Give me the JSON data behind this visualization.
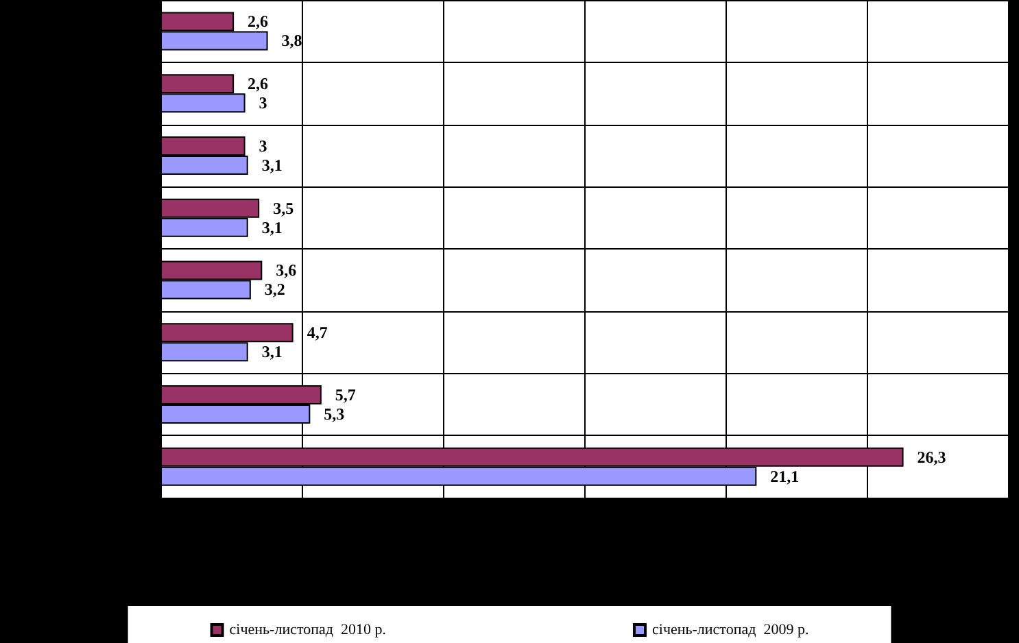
{
  "chart_data": {
    "type": "bar",
    "orientation": "horizontal",
    "categories": [
      null,
      null,
      null,
      null,
      null,
      null,
      null,
      null
    ],
    "series": [
      {
        "name": "січень-листопад  2010 р.",
        "color": "#993366",
        "values": [
          2.6,
          2.6,
          3,
          3.5,
          3.6,
          4.7,
          5.7,
          26.3
        ],
        "value_labels": [
          "2,6",
          "2,6",
          "3",
          "3,5",
          "3,6",
          "4,7",
          "5,7",
          "26,3"
        ]
      },
      {
        "name": "січень-листопад  2009 р.",
        "color": "#9999ff",
        "values": [
          3.8,
          3,
          3.1,
          3.1,
          3.2,
          3.1,
          5.3,
          21.1
        ],
        "value_labels": [
          "3,8",
          "3",
          "3,1",
          "3,1",
          "3,2",
          "3,1",
          "5,3",
          "21,1"
        ]
      }
    ],
    "xlim": [
      0,
      30
    ],
    "xticks": [
      0,
      5,
      10,
      15,
      20,
      25,
      30
    ],
    "tick_labels": false,
    "grid": true,
    "legend": "bottom"
  }
}
